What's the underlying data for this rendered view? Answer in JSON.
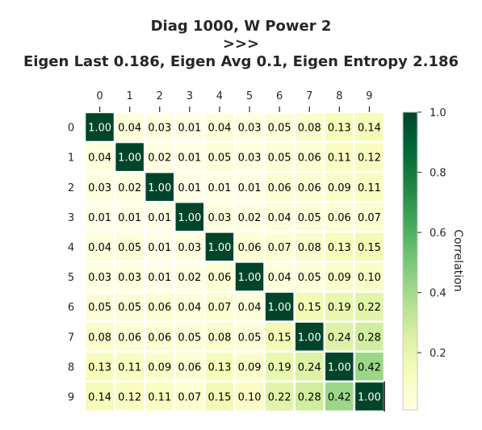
{
  "title_lines": [
    "Diag 1000, W Power 2",
    ">>>",
    "Eigen Last 0.186, Eigen Avg 0.1, Eigen Entropy 2.186"
  ],
  "chart_data": {
    "type": "heatmap",
    "title": "Diag 1000, W Power 2\n>>>\nEigen Last 0.186, Eigen Avg 0.1, Eigen Entropy 2.186",
    "x_tick_labels": [
      "0",
      "1",
      "2",
      "3",
      "4",
      "5",
      "6",
      "7",
      "8",
      "9"
    ],
    "y_tick_labels": [
      "0",
      "1",
      "2",
      "3",
      "4",
      "5",
      "6",
      "7",
      "8",
      "9"
    ],
    "values": [
      [
        1.0,
        0.04,
        0.03,
        0.01,
        0.04,
        0.03,
        0.05,
        0.08,
        0.13,
        0.14
      ],
      [
        0.04,
        1.0,
        0.02,
        0.01,
        0.05,
        0.03,
        0.05,
        0.06,
        0.11,
        0.12
      ],
      [
        0.03,
        0.02,
        1.0,
        0.01,
        0.01,
        0.01,
        0.06,
        0.06,
        0.09,
        0.11
      ],
      [
        0.01,
        0.01,
        0.01,
        1.0,
        0.03,
        0.02,
        0.04,
        0.05,
        0.06,
        0.07
      ],
      [
        0.04,
        0.05,
        0.01,
        0.03,
        1.0,
        0.06,
        0.07,
        0.08,
        0.13,
        0.15
      ],
      [
        0.03,
        0.03,
        0.01,
        0.02,
        0.06,
        1.0,
        0.04,
        0.05,
        0.09,
        0.1
      ],
      [
        0.05,
        0.05,
        0.06,
        0.04,
        0.07,
        0.04,
        1.0,
        0.15,
        0.19,
        0.22
      ],
      [
        0.08,
        0.06,
        0.06,
        0.05,
        0.08,
        0.05,
        0.15,
        1.0,
        0.24,
        0.28
      ],
      [
        0.13,
        0.11,
        0.09,
        0.06,
        0.13,
        0.09,
        0.19,
        0.24,
        1.0,
        0.42
      ],
      [
        0.14,
        0.12,
        0.11,
        0.07,
        0.15,
        0.1,
        0.22,
        0.28,
        0.42,
        1.0
      ]
    ],
    "value_format": "2 decimals",
    "colormap": "YlGn",
    "colorbar": {
      "label": "Correlation",
      "range": [
        0.01,
        1.0
      ],
      "ticks": [
        0.2,
        0.4,
        0.6,
        0.8,
        1.0
      ],
      "tick_labels": [
        "0.2",
        "0.4",
        "0.6",
        "0.8",
        "1.0"
      ]
    },
    "x_ticks_position": "top",
    "colors": {
      "text_dark": "#000000",
      "text_light": "#ffffff",
      "axis_text": "#262626",
      "cell_border": "#ffffff"
    }
  }
}
